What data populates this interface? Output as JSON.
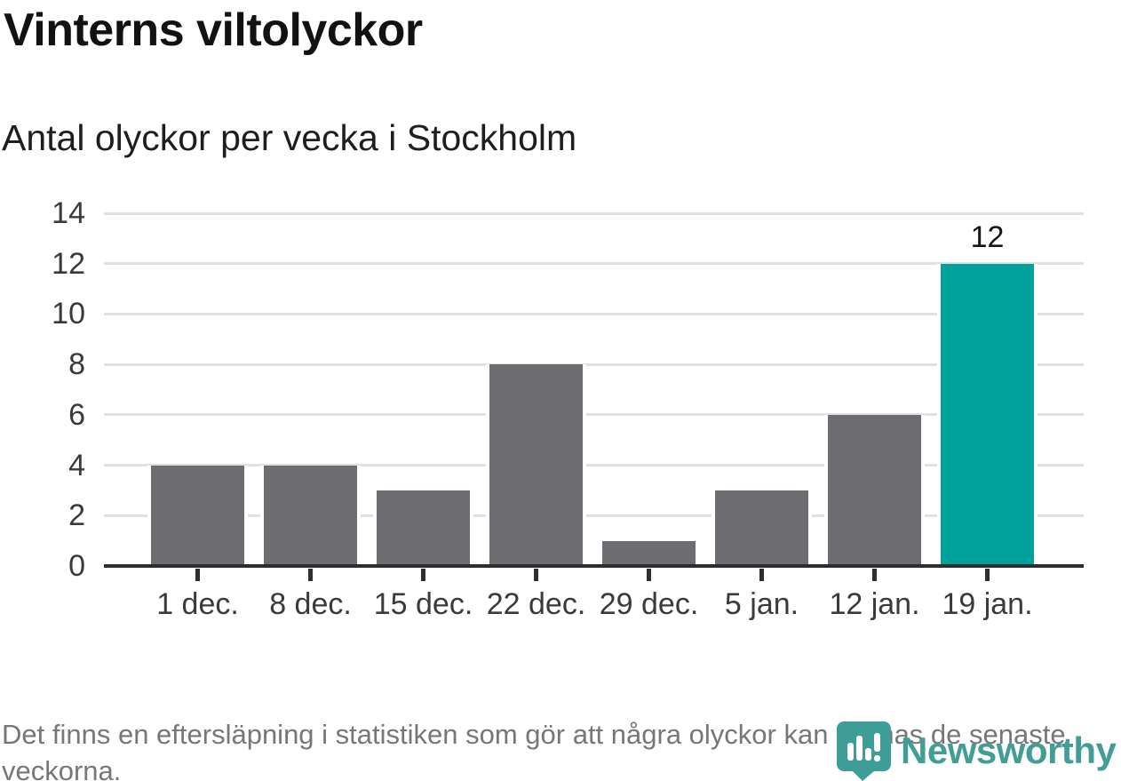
{
  "title": "Vinterns viltolyckor",
  "subtitle": "Antal olyckor per vecka i Stockholm",
  "footer": {
    "note": "Det finns en eftersläpning i statistiken som gör att några olyckor kan saknas de senaste veckorna."
  },
  "branding": {
    "name": "Newsworthy",
    "icon": "newsworthy-pin-barchart-icon",
    "icon_color": "#3e9e97",
    "text_color": "#429d96"
  },
  "chart_data": {
    "type": "bar",
    "title": "Vinterns viltolyckor",
    "subtitle": "Antal olyckor per vecka i Stockholm",
    "categories": [
      "1 dec.",
      "8 dec.",
      "15 dec.",
      "22 dec.",
      "29 dec.",
      "5 jan.",
      "12 jan.",
      "19 jan."
    ],
    "values": [
      4,
      4,
      3,
      8,
      1,
      3,
      6,
      12
    ],
    "highlight_index": 7,
    "data_labels": [
      {
        "index": 7,
        "text": "12"
      }
    ],
    "xlabel": "",
    "ylabel": "",
    "ylim": [
      0,
      14
    ],
    "yticks": [
      0,
      2,
      4,
      6,
      8,
      10,
      12,
      14
    ],
    "grid": "horizontal",
    "legend": "none",
    "colors": {
      "bar": "#6c6c71",
      "highlight": "#00a29b",
      "grid": "#e1e1e1",
      "axis": "#2e2e2e",
      "tick_label": "#3a3a3a",
      "value_label": "#161616"
    }
  }
}
